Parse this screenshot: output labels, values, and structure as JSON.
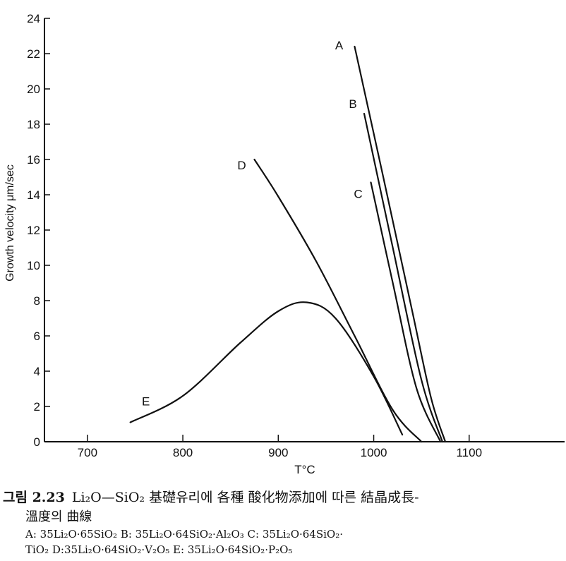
{
  "chart_data": {
    "type": "line",
    "xlabel": "T°C",
    "ylabel": "Growth velocity μm/sec",
    "xlim": [
      655,
      1200
    ],
    "ylim": [
      0,
      24
    ],
    "xticks": [
      700,
      800,
      900,
      1000,
      1100
    ],
    "yticks": [
      0,
      2,
      4,
      6,
      8,
      10,
      12,
      14,
      16,
      18,
      20,
      22,
      24
    ],
    "grid": false,
    "series": [
      {
        "name": "A",
        "x": [
          980,
          1010,
          1040,
          1060,
          1075
        ],
        "y": [
          22.4,
          15.0,
          7.5,
          2.5,
          0
        ]
      },
      {
        "name": "B",
        "x": [
          990,
          1020,
          1050,
          1072
        ],
        "y": [
          18.6,
          11.0,
          3.5,
          0
        ]
      },
      {
        "name": "C",
        "x": [
          997,
          1020,
          1045,
          1070
        ],
        "y": [
          14.7,
          9.0,
          3.0,
          0
        ]
      },
      {
        "name": "D",
        "x": [
          875,
          900,
          940,
          980,
          1020,
          1050
        ],
        "y": [
          16.0,
          13.9,
          10.2,
          6.0,
          1.8,
          0
        ]
      },
      {
        "name": "E",
        "x": [
          745,
          800,
          860,
          900,
          930,
          960,
          1000,
          1030
        ],
        "y": [
          1.1,
          2.6,
          5.6,
          7.4,
          7.9,
          7.0,
          3.7,
          0.4
        ]
      }
    ]
  },
  "caption": {
    "fig_label": "그림 2.23",
    "title": "Li₂O—SiO₂ 基礎유리에 各種 酸化物添加에 따른 結晶成長-",
    "title_cont": "溫度의 曲線",
    "legend_line1": "A: 35Li₂O·65SiO₂   B: 35Li₂O·64SiO₂·Al₂O₃   C: 35Li₂O·64SiO₂·",
    "legend_line2": "TiO₂   D:35Li₂O·64SiO₂·V₂O₅   E: 35Li₂O·64SiO₂·P₂O₅"
  }
}
